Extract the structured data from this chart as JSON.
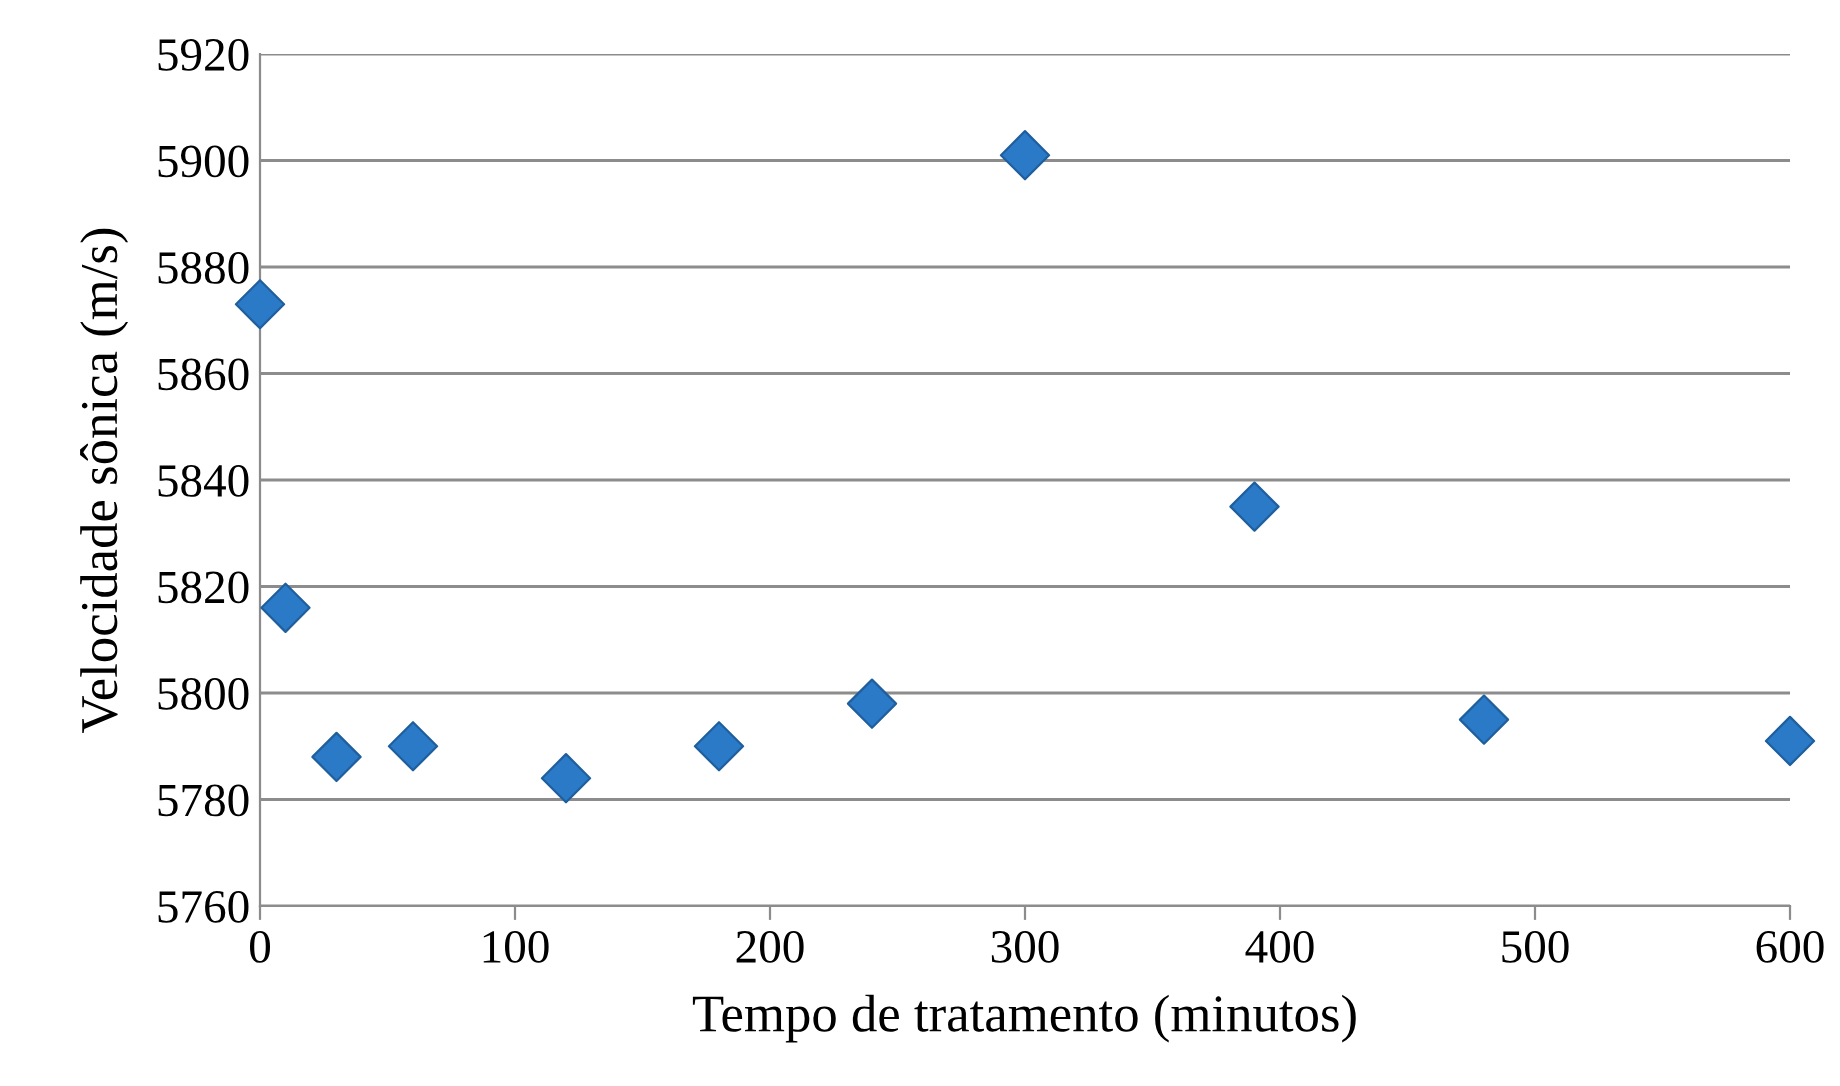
{
  "chart_data": {
    "type": "scatter",
    "xlabel": "Tempo de tratamento (minutos)",
    "ylabel": "Velocidade sônica (m/s)",
    "x": [
      0,
      10,
      30,
      60,
      120,
      180,
      240,
      300,
      390,
      480,
      600
    ],
    "values": [
      5873,
      5816,
      5788,
      5790,
      5784,
      5790,
      5798,
      5901,
      5835,
      5795,
      5791
    ],
    "color": "#2a7ac8",
    "marker": "diamond",
    "xlim": [
      0,
      600
    ],
    "xticks": [
      0,
      100,
      200,
      300,
      400,
      500,
      600
    ],
    "ylim": [
      5760,
      5920
    ],
    "yticks": [
      5760,
      5780,
      5800,
      5820,
      5840,
      5860,
      5880,
      5900,
      5920
    ],
    "grid": "y"
  }
}
